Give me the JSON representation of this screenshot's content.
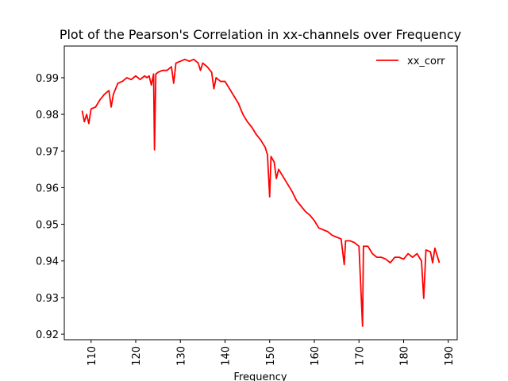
{
  "chart_data": {
    "type": "line",
    "title": "Plot of the Pearson's Correlation in xx-channels over Frequency",
    "x_label": "Frequency",
    "x": [
      108,
      108.5,
      109,
      109.5,
      110,
      111,
      112,
      113,
      114,
      114.5,
      115,
      116,
      117,
      118,
      119,
      120,
      121,
      122,
      122.5,
      123,
      123.5,
      124,
      124.2,
      124.5,
      125,
      126,
      127,
      128,
      128.5,
      129,
      130,
      131,
      132,
      133,
      134,
      134.5,
      135,
      136,
      137,
      137.5,
      138,
      139,
      140,
      141,
      142,
      143,
      144,
      145,
      146,
      147,
      148,
      149,
      149.5,
      150,
      150.3,
      151,
      151.5,
      152,
      153,
      154,
      155,
      156,
      157,
      158,
      159,
      160,
      161,
      162,
      163,
      164,
      165,
      166,
      166.7,
      167,
      168,
      169,
      170,
      170.8,
      171,
      172,
      173,
      174,
      175,
      176,
      177,
      178,
      179,
      180,
      181,
      182,
      183,
      184,
      184.5,
      185,
      186,
      186.5,
      187,
      188
    ],
    "series": [
      {
        "name": "xx_corr",
        "color": "#ff0000",
        "values": [
          0.981,
          0.978,
          0.98,
          0.9775,
          0.9815,
          0.982,
          0.984,
          0.9855,
          0.9865,
          0.982,
          0.9855,
          0.9885,
          0.989,
          0.99,
          0.9895,
          0.9905,
          0.9895,
          0.9905,
          0.99,
          0.9905,
          0.988,
          0.991,
          0.9703,
          0.991,
          0.9915,
          0.992,
          0.992,
          0.993,
          0.9885,
          0.994,
          0.9945,
          0.995,
          0.9945,
          0.995,
          0.994,
          0.992,
          0.994,
          0.993,
          0.9915,
          0.987,
          0.99,
          0.989,
          0.989,
          0.987,
          0.985,
          0.983,
          0.98,
          0.978,
          0.9765,
          0.9745,
          0.973,
          0.971,
          0.969,
          0.9575,
          0.9685,
          0.967,
          0.9625,
          0.965,
          0.963,
          0.961,
          0.959,
          0.9565,
          0.955,
          0.9535,
          0.9525,
          0.951,
          0.949,
          0.9485,
          0.948,
          0.947,
          0.9465,
          0.946,
          0.939,
          0.9455,
          0.9455,
          0.945,
          0.944,
          0.9222,
          0.944,
          0.944,
          0.942,
          0.941,
          0.941,
          0.9405,
          0.9395,
          0.941,
          0.941,
          0.9405,
          0.942,
          0.941,
          0.942,
          0.94,
          0.9298,
          0.943,
          0.9425,
          0.9395,
          0.9435,
          0.9395
        ]
      }
    ],
    "xlim": [
      104,
      192
    ],
    "xticks": [
      110,
      120,
      130,
      140,
      150,
      160,
      170,
      180,
      190
    ],
    "ylim": [
      0.9185,
      0.99865
    ],
    "yticks": [
      0.92,
      0.93,
      0.94,
      0.95,
      0.96,
      0.97,
      0.98,
      0.99
    ],
    "legend": "upper right"
  }
}
